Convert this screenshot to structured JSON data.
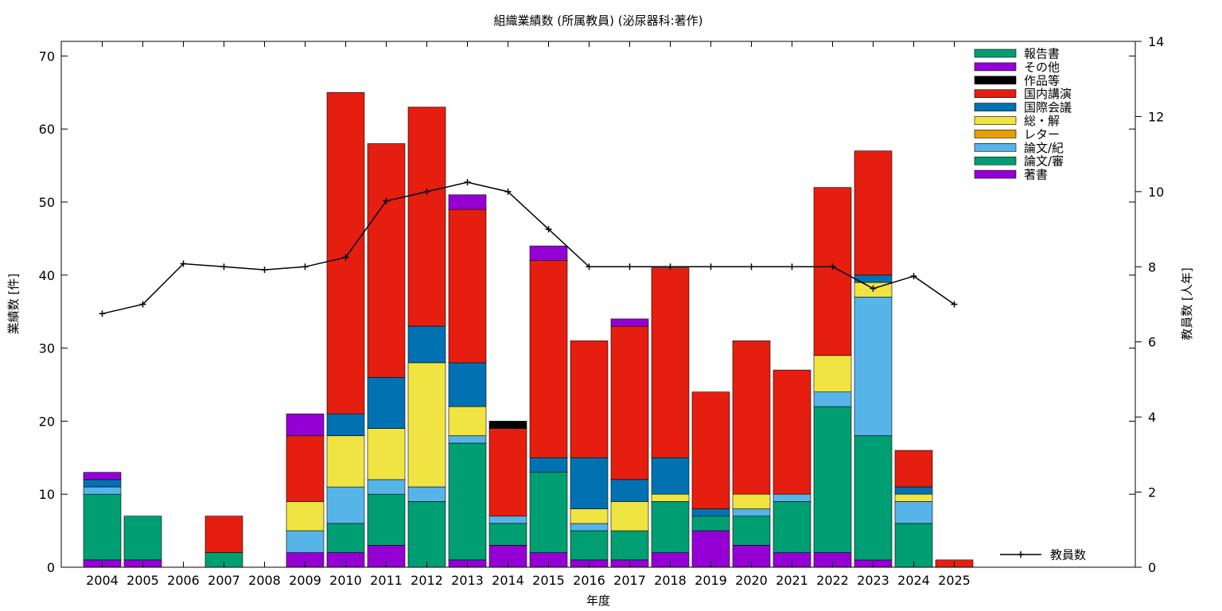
{
  "chart_data": {
    "type": "bar",
    "title": "組織業績数 (所属教員) (泌尿器科:著作)",
    "xlabel": "年度",
    "ylabel": "業績数 [件]",
    "y2label": "教員数 [人年]",
    "ylim": [
      0,
      72
    ],
    "y2lim": [
      0,
      14
    ],
    "yticks": [
      0,
      10,
      20,
      30,
      40,
      50,
      60,
      70
    ],
    "y2ticks": [
      0,
      2,
      4,
      6,
      8,
      10,
      12,
      14
    ],
    "grid": false,
    "legend_position": "top-right",
    "categories": [
      "2004",
      "2005",
      "2006",
      "2007",
      "2008",
      "2009",
      "2010",
      "2011",
      "2012",
      "2013",
      "2014",
      "2015",
      "2016",
      "2017",
      "2018",
      "2019",
      "2020",
      "2021",
      "2022",
      "2023",
      "2024",
      "2025"
    ],
    "series": [
      {
        "name": "著書",
        "color": "#9400D3",
        "values": [
          1,
          1,
          0,
          0,
          0,
          2,
          2,
          3,
          0,
          1,
          3,
          2,
          1,
          1,
          2,
          5,
          3,
          2,
          2,
          1,
          0,
          0
        ]
      },
      {
        "name": "論文/審",
        "color": "#009E73",
        "values": [
          9,
          6,
          0,
          2,
          0,
          0,
          4,
          7,
          9,
          16,
          3,
          11,
          4,
          4,
          7,
          2,
          4,
          7,
          20,
          17,
          6,
          0
        ]
      },
      {
        "name": "論文/紀",
        "color": "#56B4E9",
        "values": [
          1,
          0,
          0,
          0,
          0,
          3,
          5,
          2,
          2,
          1,
          1,
          0,
          1,
          0,
          0,
          0,
          1,
          1,
          2,
          19,
          3,
          0
        ]
      },
      {
        "name": "レター",
        "color": "#E69F00",
        "values": [
          0,
          0,
          0,
          0,
          0,
          0,
          0,
          0,
          0,
          0,
          0,
          0,
          0,
          0,
          0,
          0,
          0,
          0,
          0,
          0,
          0,
          0
        ]
      },
      {
        "name": "総・解",
        "color": "#F0E442",
        "values": [
          0,
          0,
          0,
          0,
          0,
          4,
          7,
          7,
          17,
          4,
          0,
          0,
          2,
          4,
          1,
          0,
          2,
          0,
          5,
          2,
          1,
          0
        ]
      },
      {
        "name": "国際会議",
        "color": "#0072B2",
        "values": [
          1,
          0,
          0,
          0,
          0,
          0,
          3,
          7,
          5,
          6,
          0,
          2,
          7,
          3,
          5,
          1,
          0,
          0,
          0,
          1,
          1,
          0
        ]
      },
      {
        "name": "国内講演",
        "color": "#E51E10",
        "values": [
          0,
          0,
          0,
          5,
          0,
          9,
          44,
          32,
          30,
          21,
          12,
          27,
          16,
          21,
          26,
          16,
          21,
          17,
          23,
          17,
          5,
          1
        ]
      },
      {
        "name": "作品等",
        "color": "#000000",
        "values": [
          0,
          0,
          0,
          0,
          0,
          0,
          0,
          0,
          0,
          0,
          1,
          0,
          0,
          0,
          0,
          0,
          0,
          0,
          0,
          0,
          0,
          0
        ]
      },
      {
        "name": "その他",
        "color": "#9400D3",
        "values": [
          1,
          0,
          0,
          0,
          0,
          3,
          0,
          0,
          0,
          2,
          0,
          2,
          0,
          1,
          0,
          0,
          0,
          0,
          0,
          0,
          0,
          0
        ]
      },
      {
        "name": "報告書",
        "color": "#009E73",
        "values": [
          0,
          0,
          0,
          0,
          0,
          0,
          0,
          0,
          0,
          0,
          0,
          0,
          0,
          0,
          0,
          0,
          0,
          0,
          0,
          0,
          0,
          0
        ]
      }
    ],
    "line": {
      "name": "教員数",
      "axis": "y2",
      "values": [
        6.75,
        7.0,
        8.08,
        8.0,
        7.92,
        8.0,
        8.25,
        9.75,
        10.0,
        10.25,
        10.0,
        9.0,
        8.0,
        8.0,
        8.0,
        8.0,
        8.0,
        8.0,
        8.0,
        7.42,
        7.75,
        7.0
      ]
    }
  }
}
